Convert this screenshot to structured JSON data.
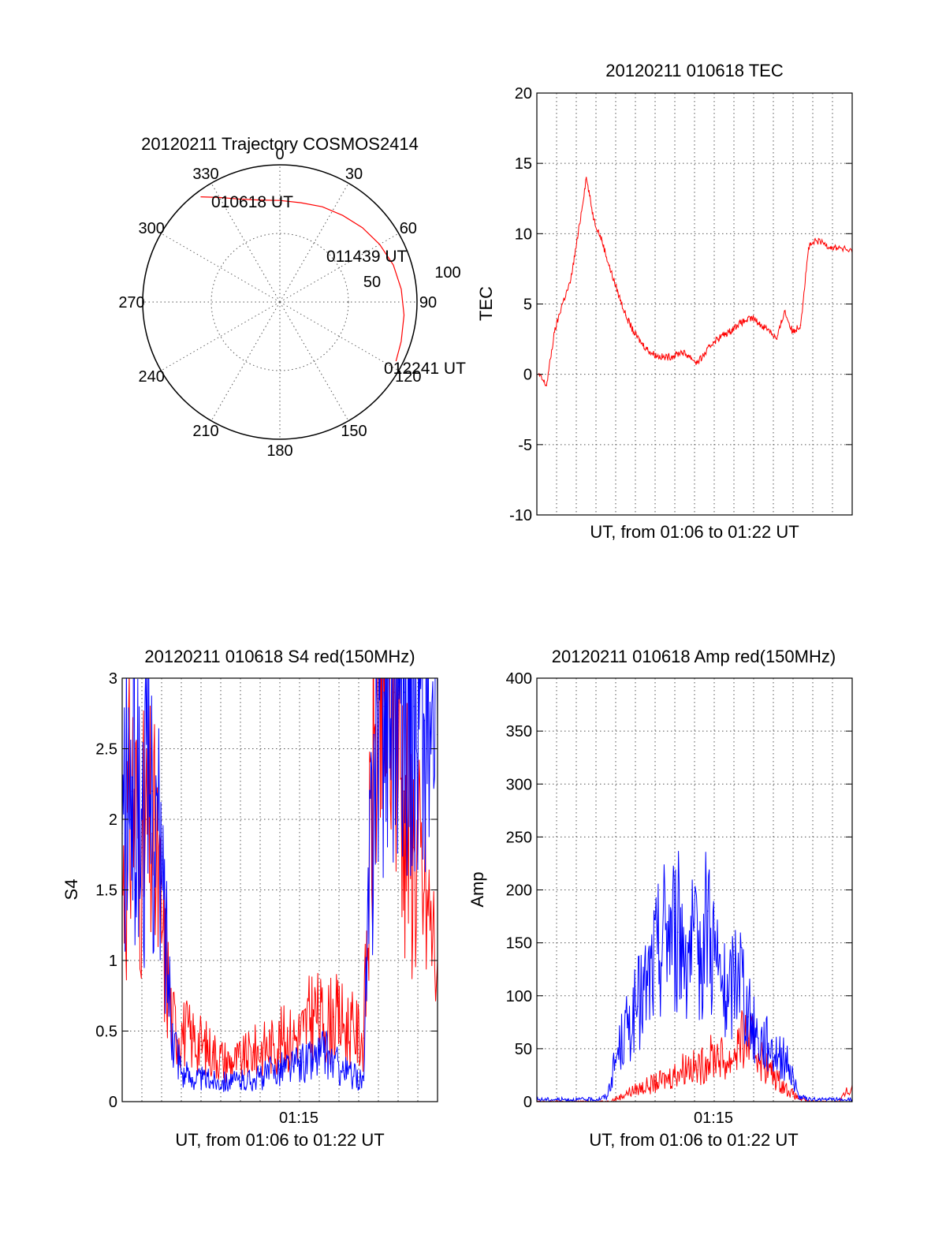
{
  "colors": {
    "red": "#ff0000",
    "blue": "#0000ff",
    "axis": "#000000",
    "background": "#ffffff"
  },
  "chart_data": [
    {
      "id": "trajectory",
      "type": "polar",
      "title": "20120211 Trajectory COSMOS2414",
      "azimuth_labels": [
        "0",
        "30",
        "60",
        "90",
        "120",
        "150",
        "180",
        "210",
        "240",
        "270",
        "300",
        "330"
      ],
      "radial_labels": [
        "50",
        "100"
      ],
      "rlim": [
        0,
        100
      ],
      "grid": true,
      "series": [
        {
          "color": "red",
          "points": [
            {
              "az": 323,
              "r": 96
            },
            {
              "az": 330,
              "r": 88
            },
            {
              "az": 338,
              "r": 81
            },
            {
              "az": 348,
              "r": 76
            },
            {
              "az": 0,
              "r": 74
            },
            {
              "az": 12,
              "r": 74
            },
            {
              "az": 24,
              "r": 76
            },
            {
              "az": 36,
              "r": 78
            },
            {
              "az": 48,
              "r": 81
            },
            {
              "az": 60,
              "r": 84
            },
            {
              "az": 72,
              "r": 87
            },
            {
              "az": 84,
              "r": 89
            },
            {
              "az": 96,
              "r": 91
            },
            {
              "az": 108,
              "r": 93
            },
            {
              "az": 117,
              "r": 95
            }
          ]
        }
      ],
      "annotations": [
        "010618 UT",
        "011439 UT",
        "012241 UT"
      ]
    },
    {
      "id": "tec",
      "type": "line",
      "title": "20120211 010618 TEC",
      "xlabel": "UT, from 01:06 to 01:22 UT",
      "ylabel": "TEC",
      "xlim": [
        "01:06:18",
        "01:22:41"
      ],
      "ylim": [
        -10,
        20
      ],
      "yticks": [
        "20",
        "15",
        "10",
        "5",
        "0",
        "-5",
        "-10"
      ],
      "grid": true,
      "series": [
        {
          "color": "red",
          "x": [
            "01:06:23",
            "01:06:48",
            "01:07:13",
            "01:07:37",
            "01:08:02",
            "01:08:27",
            "01:08:52",
            "01:09:16",
            "01:09:41",
            "01:10:06",
            "01:10:31",
            "01:10:55",
            "01:11:20",
            "01:11:45",
            "01:12:10",
            "01:12:34",
            "01:12:59",
            "01:13:24",
            "01:13:49",
            "01:14:13",
            "01:14:38",
            "01:15:03",
            "01:15:28",
            "01:15:52",
            "01:16:17",
            "01:16:42",
            "01:17:07",
            "01:17:31",
            "01:17:56",
            "01:18:21",
            "01:18:46",
            "01:19:10",
            "01:19:35",
            "01:20:00",
            "01:20:25",
            "01:20:49",
            "01:21:14",
            "01:21:39",
            "01:22:04",
            "01:22:41"
          ],
          "y": [
            0,
            -0.8,
            3,
            5,
            6.5,
            10,
            14,
            11,
            9.5,
            7.5,
            5.8,
            4.2,
            3,
            2.2,
            1.6,
            1.3,
            1.2,
            1.3,
            1.6,
            1.3,
            0.8,
            1.5,
            2.3,
            2.7,
            3,
            3.5,
            3.8,
            4,
            3.5,
            3.2,
            2.5,
            4.5,
            3,
            3.5,
            9,
            9.5,
            9.3,
            9,
            9,
            8.7
          ]
        }
      ]
    },
    {
      "id": "s4",
      "type": "line",
      "title": "20120211 010618 S4 red(150MHz)",
      "xlabel": "UT, from 01:06 to 01:22 UT",
      "ylabel": "S4",
      "xtick_labels": [
        "01:15"
      ],
      "ylim": [
        0,
        3
      ],
      "yticks": [
        "3",
        "2.5",
        "2",
        "1.5",
        "1",
        "0.5",
        "0"
      ],
      "grid": true,
      "series": [
        {
          "color": "red",
          "x": [
            "01:06:18",
            "01:06:49",
            "01:07:20",
            "01:07:52",
            "01:08:23",
            "01:08:55",
            "01:09:26",
            "01:09:57",
            "01:10:29",
            "01:11:00",
            "01:11:32",
            "01:12:03",
            "01:12:34",
            "01:13:06",
            "01:13:37",
            "01:14:09",
            "01:14:40",
            "01:15:11",
            "01:15:43",
            "01:16:14",
            "01:16:46",
            "01:17:17",
            "01:17:48",
            "01:18:20",
            "01:18:51",
            "01:19:23",
            "01:19:54",
            "01:20:25",
            "01:20:57",
            "01:21:28",
            "01:22:00",
            "01:22:41"
          ],
          "y": [
            1.5,
            2.2,
            1.8,
            1.9,
            1.2,
            0.55,
            0.5,
            0.45,
            0.4,
            0.35,
            0.3,
            0.28,
            0.3,
            0.35,
            0.38,
            0.4,
            0.45,
            0.45,
            0.5,
            0.65,
            0.55,
            0.6,
            0.55,
            0.5,
            0.45,
            2.5,
            2.8,
            2.9,
            2.2,
            1.8,
            1.5,
            1.0
          ]
        },
        {
          "color": "blue",
          "x": [
            "01:06:18",
            "01:06:49",
            "01:07:20",
            "01:07:52",
            "01:08:23",
            "01:08:55",
            "01:09:26",
            "01:09:57",
            "01:10:29",
            "01:11:00",
            "01:11:32",
            "01:12:03",
            "01:12:34",
            "01:13:06",
            "01:13:37",
            "01:14:09",
            "01:14:40",
            "01:15:11",
            "01:15:43",
            "01:16:14",
            "01:16:46",
            "01:17:17",
            "01:17:48",
            "01:18:20",
            "01:18:51",
            "01:19:23",
            "01:19:54",
            "01:20:25",
            "01:20:57",
            "01:21:28",
            "01:22:00",
            "01:22:41"
          ],
          "y": [
            1.9,
            2.3,
            2.0,
            2.2,
            1.5,
            0.55,
            0.2,
            0.17,
            0.16,
            0.15,
            0.15,
            0.14,
            0.15,
            0.16,
            0.18,
            0.22,
            0.25,
            0.25,
            0.28,
            0.3,
            0.35,
            0.28,
            0.22,
            0.18,
            0.15,
            2.6,
            2.9,
            3.0,
            2.9,
            2.8,
            2.7,
            2.6
          ]
        }
      ]
    },
    {
      "id": "amp",
      "type": "line",
      "title": "20120211 010618 Amp red(150MHz)",
      "xlabel": "UT, from 01:06 to 01:22 UT",
      "ylabel": "Amp",
      "xtick_labels": [
        "01:15"
      ],
      "ylim": [
        0,
        400
      ],
      "yticks": [
        "400",
        "350",
        "300",
        "250",
        "200",
        "150",
        "100",
        "50",
        "0"
      ],
      "grid": true,
      "series": [
        {
          "color": "red",
          "x": [
            "01:06:18",
            "01:06:49",
            "01:07:20",
            "01:07:52",
            "01:08:23",
            "01:08:55",
            "01:09:26",
            "01:09:57",
            "01:10:29",
            "01:11:00",
            "01:11:32",
            "01:12:03",
            "01:12:34",
            "01:13:06",
            "01:13:37",
            "01:14:09",
            "01:14:40",
            "01:15:11",
            "01:15:43",
            "01:16:14",
            "01:16:46",
            "01:17:17",
            "01:17:48",
            "01:18:20",
            "01:18:51",
            "01:19:23",
            "01:19:54",
            "01:20:25",
            "01:20:57",
            "01:21:28",
            "01:22:00",
            "01:22:41"
          ],
          "y": [
            0,
            0,
            0,
            0,
            0,
            0,
            0,
            0,
            3,
            8,
            12,
            15,
            18,
            22,
            28,
            35,
            30,
            40,
            45,
            35,
            55,
            60,
            45,
            30,
            20,
            10,
            3,
            0,
            0,
            0,
            0,
            15
          ]
        },
        {
          "color": "blue",
          "x": [
            "01:06:18",
            "01:06:49",
            "01:07:20",
            "01:07:52",
            "01:08:23",
            "01:08:55",
            "01:09:26",
            "01:09:57",
            "01:10:29",
            "01:11:00",
            "01:11:32",
            "01:12:03",
            "01:12:34",
            "01:13:06",
            "01:13:37",
            "01:14:09",
            "01:14:40",
            "01:15:11",
            "01:15:43",
            "01:16:14",
            "01:16:46",
            "01:17:17",
            "01:17:48",
            "01:18:20",
            "01:18:51",
            "01:19:23",
            "01:19:54",
            "01:20:25",
            "01:20:57",
            "01:21:28",
            "01:22:00",
            "01:22:41"
          ],
          "y": [
            2,
            2,
            2,
            2,
            2,
            2,
            2,
            5,
            45,
            70,
            90,
            110,
            140,
            170,
            160,
            150,
            130,
            180,
            120,
            90,
            140,
            80,
            60,
            55,
            45,
            35,
            5,
            2,
            2,
            2,
            2,
            2
          ]
        }
      ]
    }
  ]
}
